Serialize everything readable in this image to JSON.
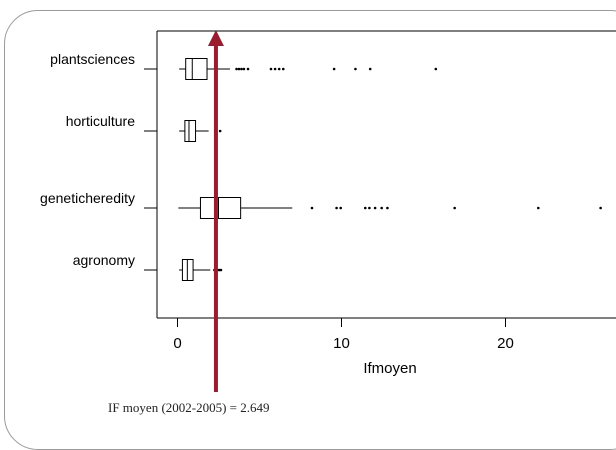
{
  "colors": {
    "marker": "#9b1c2e",
    "frame": "#9a9a9a",
    "ink": "#000000"
  },
  "marker": {
    "value": 2.649,
    "caption": "IF moyen (2002-2005) = 2.649"
  },
  "chart_data": {
    "type": "box",
    "orientation": "horizontal",
    "title": "",
    "xlabel": "Ifmoyen",
    "ylabel": "",
    "xlim": [
      -1.2,
      27
    ],
    "x_ticks": [
      0,
      10,
      20
    ],
    "categories": [
      "plantsciences",
      "horticulture",
      "geneticheredity",
      "agronomy"
    ],
    "boxes": [
      {
        "category": "plantsciences",
        "whisker_low": 0.1,
        "q1": 0.5,
        "median": 0.9,
        "q3": 1.8,
        "whisker_high": 3.2,
        "outliers": [
          3.6,
          3.75,
          3.9,
          4.05,
          4.3,
          5.7,
          5.95,
          6.2,
          6.45,
          9.55,
          10.85,
          11.75,
          15.75
        ]
      },
      {
        "category": "horticulture",
        "whisker_low": 0.1,
        "q1": 0.45,
        "median": 0.7,
        "q3": 1.1,
        "whisker_high": 1.9,
        "outliers": [
          2.6
        ]
      },
      {
        "category": "geneticheredity",
        "whisker_low": 0.05,
        "q1": 1.4,
        "median": 2.5,
        "q3": 3.85,
        "whisker_high": 7.0,
        "outliers": [
          8.2,
          9.7,
          9.95,
          11.45,
          11.7,
          12.05,
          12.45,
          12.8,
          16.9,
          22.0,
          25.8
        ]
      },
      {
        "category": "agronomy",
        "whisker_low": 0.1,
        "q1": 0.3,
        "median": 0.6,
        "q3": 0.95,
        "whisker_high": 2.0,
        "outliers": [
          2.25,
          2.35,
          2.45,
          2.55,
          2.65
        ]
      }
    ]
  }
}
